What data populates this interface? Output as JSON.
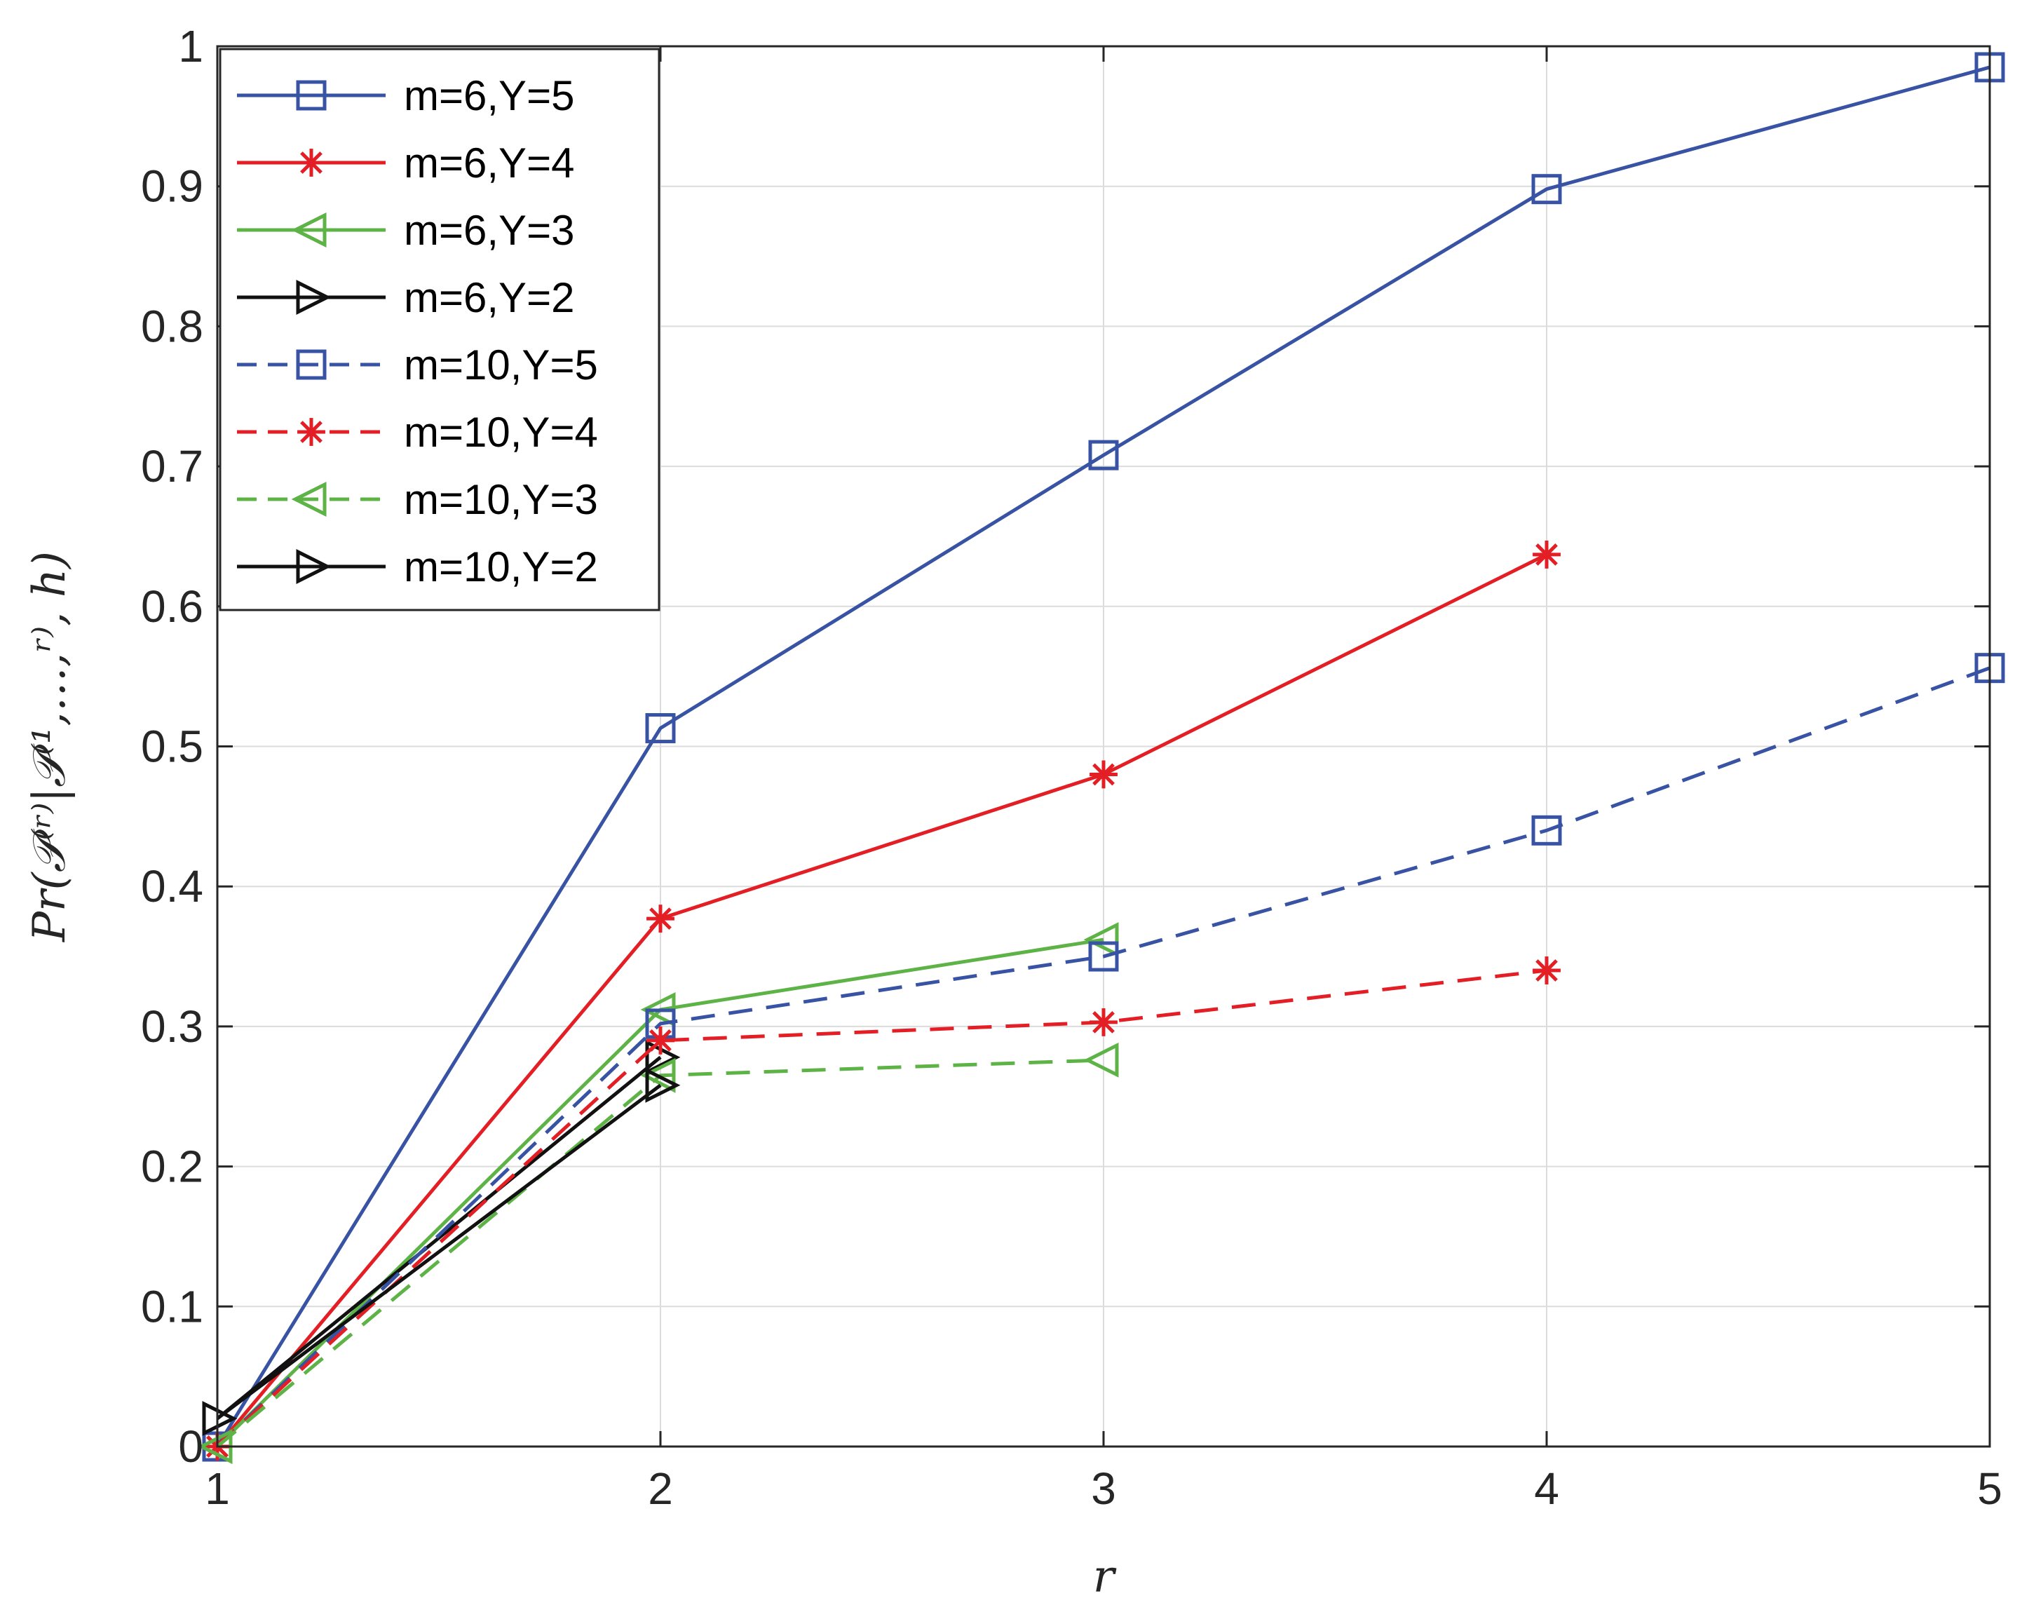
{
  "chart_data": {
    "type": "line",
    "title": "",
    "xlabel": "r",
    "ylabel": "Pr(𝒫⁽ʳ⁾|𝒫⁽¹,…,ʳ⁾, h)",
    "xlim": [
      1,
      5
    ],
    "ylim": [
      0,
      1
    ],
    "xticks": [
      1,
      2,
      3,
      4,
      5
    ],
    "yticks": [
      0,
      0.1,
      0.2,
      0.3,
      0.4,
      0.5,
      0.6,
      0.7,
      0.8,
      0.9,
      1
    ],
    "grid": true,
    "legend_position": "top-left",
    "series": [
      {
        "name": "m=6,Y=5",
        "color": "#3953a4",
        "dash": "solid",
        "marker": "square",
        "x": [
          1,
          2,
          3,
          4,
          5
        ],
        "y": [
          0.0,
          0.513,
          0.708,
          0.898,
          0.985
        ]
      },
      {
        "name": "m=6,Y=4",
        "color": "#e31e24",
        "dash": "solid",
        "marker": "asterisk",
        "x": [
          1,
          2,
          3,
          4
        ],
        "y": [
          0.0,
          0.377,
          0.48,
          0.637
        ]
      },
      {
        "name": "m=6,Y=3",
        "color": "#5db346",
        "dash": "solid",
        "marker": "triangle-left",
        "x": [
          1,
          2,
          3
        ],
        "y": [
          0.0,
          0.312,
          0.362
        ]
      },
      {
        "name": "m=6,Y=2",
        "color": "#111111",
        "dash": "solid",
        "marker": "triangle-right",
        "x": [
          1,
          2
        ],
        "y": [
          0.02,
          0.278
        ]
      },
      {
        "name": "m=10,Y=5",
        "color": "#3953a4",
        "dash": "dashed",
        "marker": "square",
        "x": [
          1,
          2,
          3,
          4,
          5
        ],
        "y": [
          0.0,
          0.302,
          0.35,
          0.44,
          0.556
        ]
      },
      {
        "name": "m=10,Y=4",
        "color": "#e31e24",
        "dash": "dashed",
        "marker": "asterisk",
        "x": [
          1,
          2,
          3,
          4
        ],
        "y": [
          0.0,
          0.29,
          0.303,
          0.34
        ]
      },
      {
        "name": "m=10,Y=3",
        "color": "#5db346",
        "dash": "dashed",
        "marker": "triangle-left",
        "x": [
          1,
          2,
          3
        ],
        "y": [
          0.0,
          0.265,
          0.276
        ]
      },
      {
        "name": "m=10,Y=2",
        "color": "#111111",
        "dash": "solid",
        "marker": "triangle-right",
        "x": [
          1,
          2
        ],
        "y": [
          0.02,
          0.258
        ]
      }
    ]
  }
}
